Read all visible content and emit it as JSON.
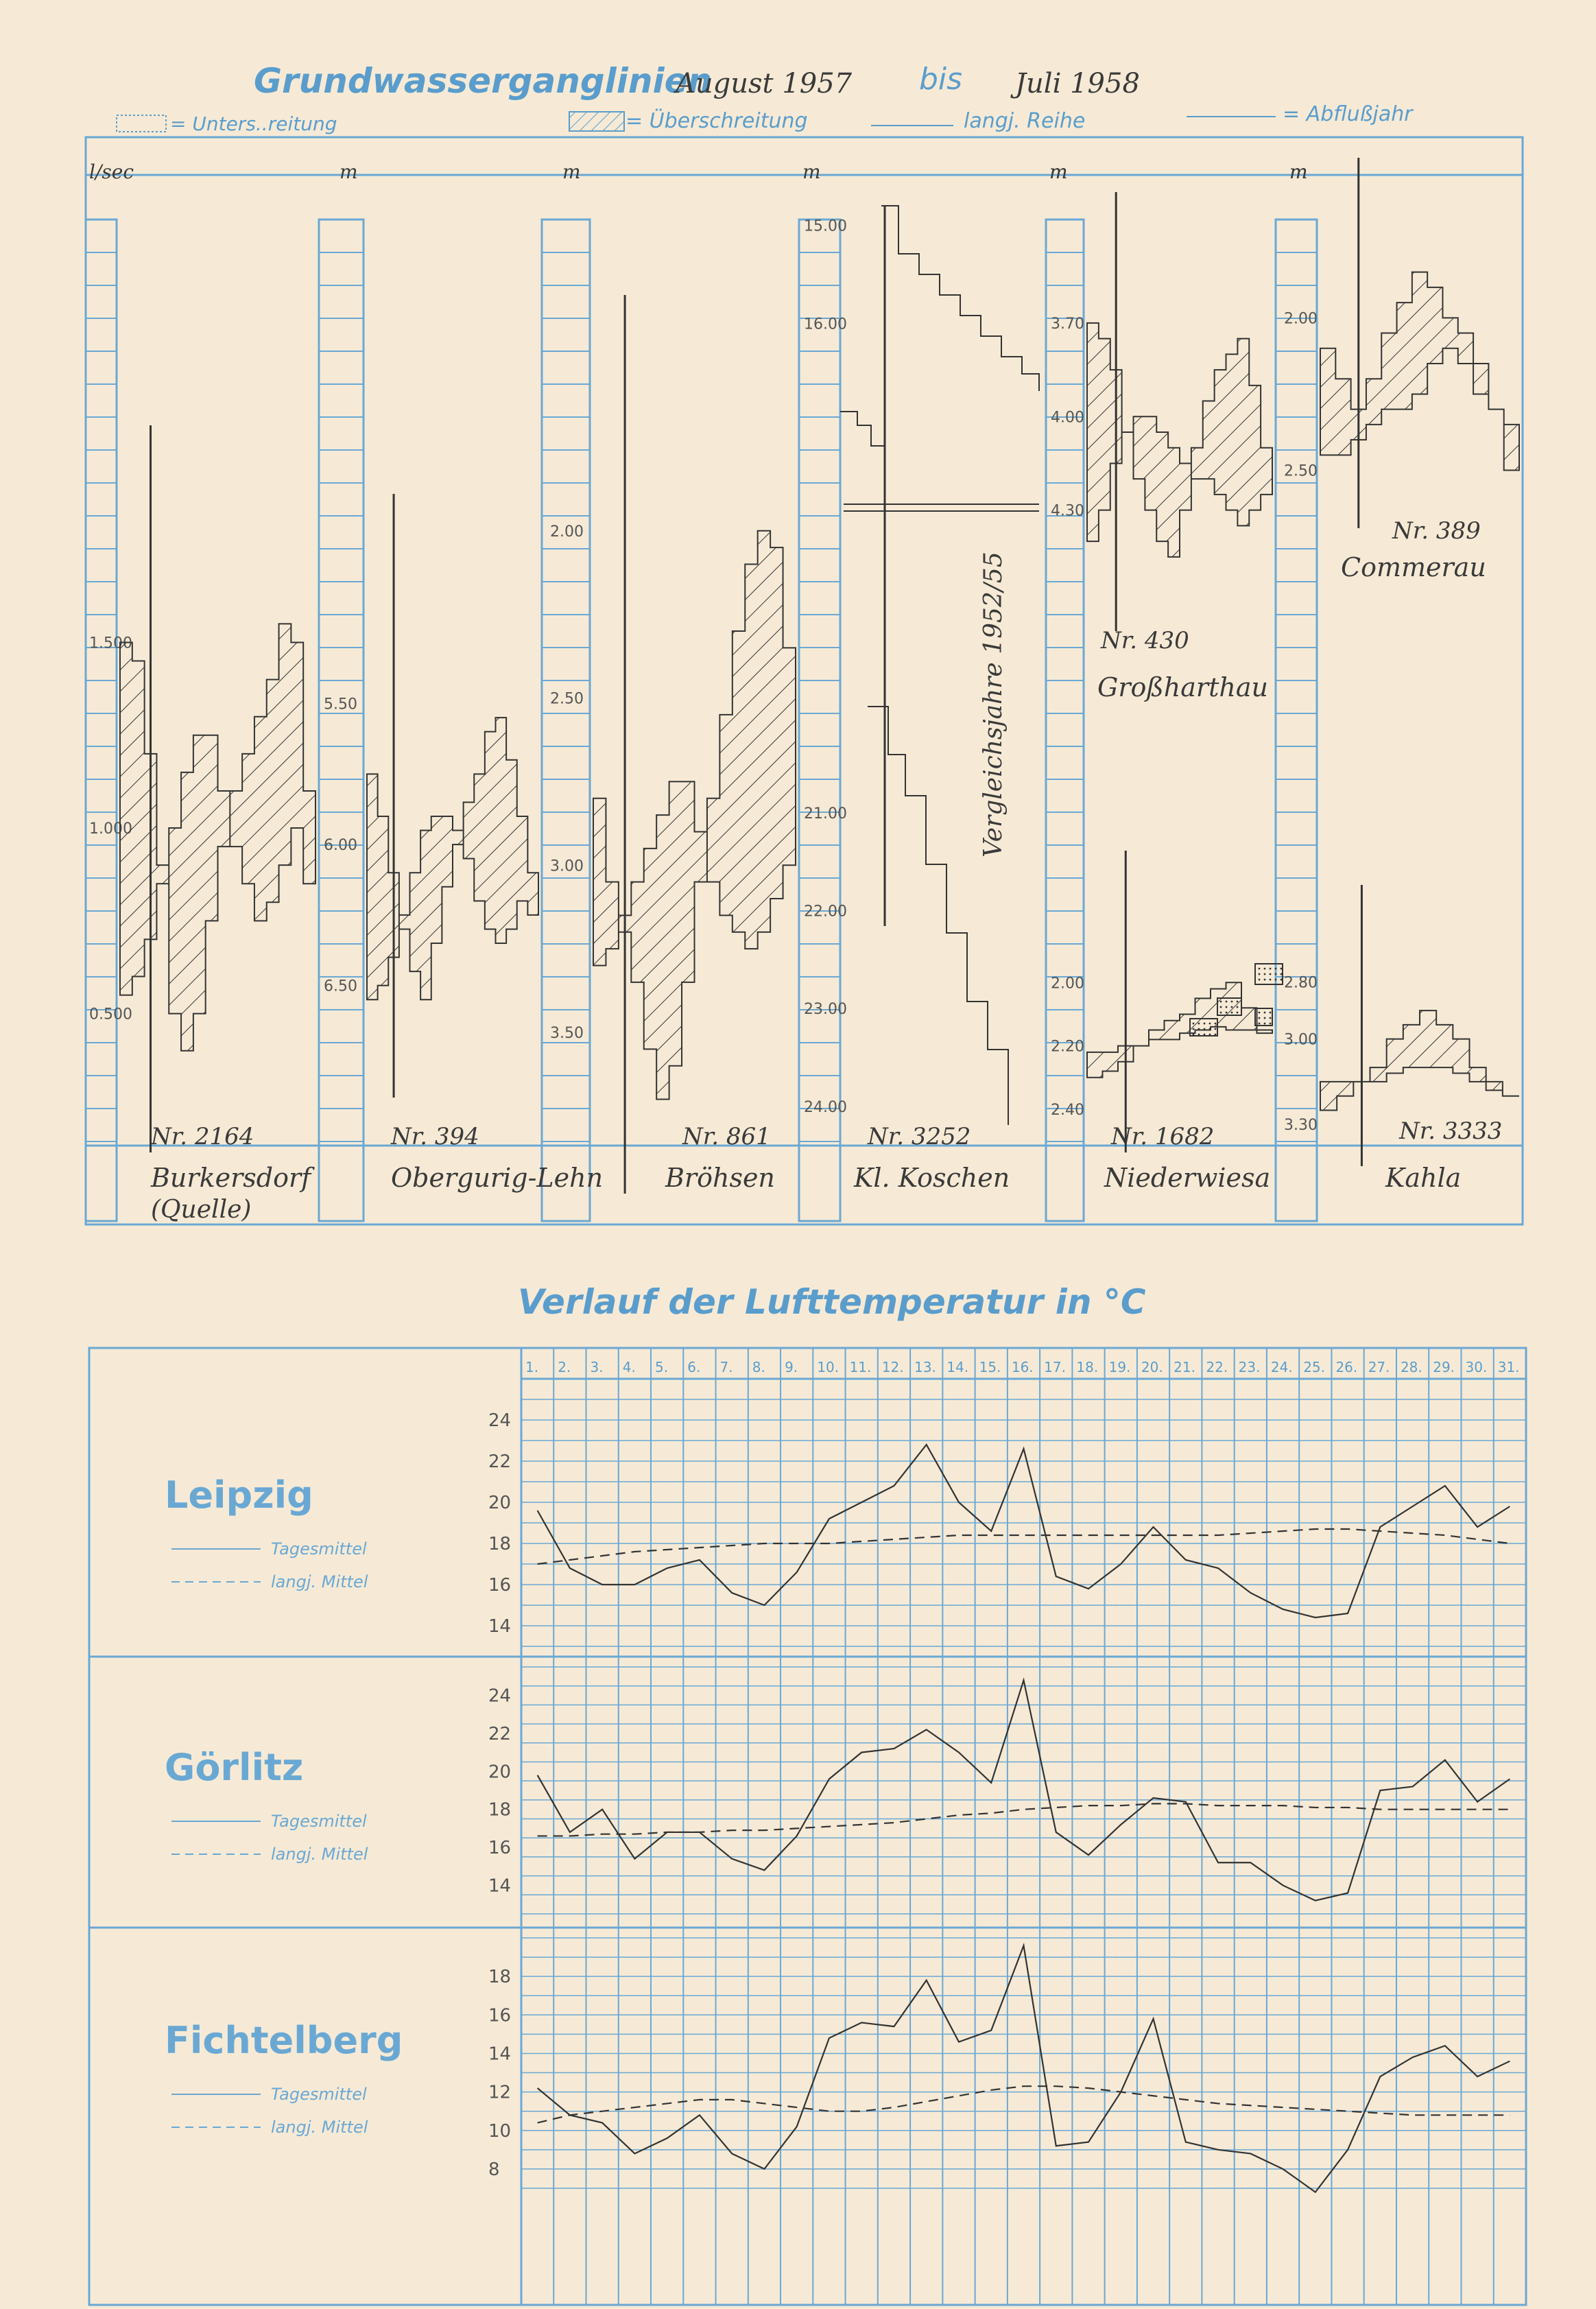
{
  "groundwater": {
    "title_prefix": "Grundwasserganglinien",
    "title_from": "August 1957",
    "title_mid": "bis",
    "title_to": "Juli 1958",
    "legend": {
      "under": "= Unters..reitung",
      "over": "= Überschreitung",
      "long_term": "langj. Reihe",
      "runoff_year": "= Abflußjahr"
    },
    "comparison_note": "Vergleichsjahre 1952/55"
  },
  "temperature": {
    "title": "Verlauf der Lufttemperatur in °C",
    "days": [
      "1.",
      "2.",
      "3.",
      "4.",
      "5.",
      "6.",
      "7.",
      "8.",
      "9.",
      "10.",
      "11.",
      "12.",
      "13.",
      "14.",
      "15.",
      "16.",
      "17.",
      "18.",
      "19.",
      "20.",
      "21.",
      "22.",
      "23.",
      "24.",
      "25.",
      "26.",
      "27.",
      "28.",
      "29.",
      "30.",
      "31."
    ],
    "legend_daily": "Tagesmittel",
    "legend_long_term": "langj. Mittel"
  },
  "chart_data": [
    {
      "type": "area",
      "title": "Grundwasserganglinien August 1957 bis Juli 1958",
      "panels": [
        {
          "nr": "Nr. 2164",
          "name": "Burkersdorf (Quelle)",
          "unit": "l/sec",
          "ticks": [
            "1.500",
            "1.000",
            "0.500"
          ],
          "tick_values": [
            1.5,
            1.0,
            0.5
          ],
          "ylim": [
            1.9,
            0.2
          ],
          "values": [
            1.5,
            1.45,
            1.2,
            0.9,
            0.5,
            0.4,
            0.5,
            0.75,
            0.95,
            1.1,
            1.2,
            1.3,
            1.4,
            1.55,
            1.5,
            1.1
          ],
          "long_term": [
            0.55,
            0.6,
            0.7,
            0.85,
            1.0,
            1.15,
            1.25,
            1.25,
            1.1,
            0.95,
            0.85,
            0.75,
            0.8,
            0.9,
            1.0,
            0.85
          ]
        },
        {
          "nr": "Nr. 394",
          "name": "Obergurig-Lehn",
          "unit": "m",
          "ticks": [
            "5.50",
            "6.00",
            "6.50"
          ],
          "tick_values": [
            5.5,
            6.0,
            6.5
          ],
          "ylim": [
            5.0,
            6.8
          ],
          "values": [
            5.75,
            5.9,
            6.1,
            6.3,
            6.45,
            6.55,
            6.35,
            6.15,
            6.0,
            5.85,
            5.75,
            5.6,
            5.55,
            5.7,
            5.9,
            6.1
          ],
          "long_term": [
            6.55,
            6.5,
            6.4,
            6.25,
            6.1,
            5.95,
            5.9,
            5.9,
            5.95,
            6.05,
            6.2,
            6.3,
            6.35,
            6.3,
            6.2,
            6.25
          ]
        },
        {
          "nr": "Nr. 861",
          "name": "Bröhsen",
          "unit": "m",
          "ticks": [
            "2.00",
            "2.50",
            "3.00",
            "3.50"
          ],
          "tick_values": [
            2.0,
            2.5,
            3.0,
            3.5
          ],
          "ylim": [
            1.5,
            3.9
          ],
          "values": [
            2.8,
            3.05,
            3.2,
            3.35,
            3.55,
            3.7,
            3.6,
            3.35,
            3.05,
            2.8,
            2.55,
            2.3,
            2.1,
            2.0,
            2.05,
            2.35
          ],
          "long_term": [
            3.3,
            3.25,
            3.15,
            3.05,
            2.95,
            2.85,
            2.75,
            2.75,
            2.9,
            3.05,
            3.15,
            3.2,
            3.25,
            3.2,
            3.1,
            3.0
          ]
        },
        {
          "nr": "Nr. 3252",
          "name": "Kl. Koschen",
          "unit": "m",
          "ticks": [
            "15.00",
            "16.00",
            "21.00",
            "22.00",
            "23.00",
            "24.00"
          ],
          "tick_values": [
            15.0,
            16.0,
            21.0,
            22.0,
            23.0,
            24.0
          ],
          "ylim": [
            14.8,
            24.4
          ],
          "values": [],
          "long_term": []
        },
        {
          "nr": "Nr. 430",
          "name": "Großharthau",
          "unit": "m",
          "ticks": [
            "3.70",
            "4.00",
            "4.30"
          ],
          "tick_values": [
            3.7,
            4.0,
            4.3
          ],
          "ylim": [
            3.5,
            4.6
          ],
          "values": [
            3.7,
            3.75,
            3.85,
            4.05,
            4.2,
            4.3,
            4.4,
            4.45,
            4.3,
            4.1,
            3.95,
            3.85,
            3.8,
            3.75,
            3.9,
            4.1
          ],
          "long_term": [
            4.4,
            4.3,
            4.15,
            4.05,
            4.0,
            4.0,
            4.05,
            4.1,
            4.15,
            4.2,
            4.2,
            4.25,
            4.3,
            4.35,
            4.3,
            4.25
          ]
        },
        {
          "nr": "Nr. 389",
          "name": "Commerau",
          "unit": "m",
          "ticks": [
            "2.00",
            "2.50"
          ],
          "tick_values": [
            2.0,
            2.5
          ],
          "ylim": [
            1.7,
            2.6
          ],
          "values": [
            2.1,
            2.2,
            2.3,
            2.2,
            2.05,
            1.95,
            1.85,
            1.9,
            2.0,
            2.05,
            2.15,
            2.3,
            2.5
          ],
          "long_term": [
            2.45,
            2.45,
            2.4,
            2.35,
            2.3,
            2.3,
            2.25,
            2.15,
            2.1,
            2.15,
            2.25,
            2.3,
            2.35
          ]
        },
        {
          "nr": "Nr. 1682",
          "name": "Niederwiesa",
          "unit": "m",
          "ticks": [
            "2.00",
            "2.20",
            "2.40"
          ],
          "tick_values": [
            2.0,
            2.2,
            2.4
          ],
          "ylim": [
            1.8,
            2.45
          ],
          "values": [
            2.3,
            2.28,
            2.25,
            2.2,
            2.15,
            2.12,
            2.1,
            2.05,
            2.02,
            2.0,
            2.08,
            2.15
          ],
          "long_term": [
            2.22,
            2.22,
            2.2,
            2.2,
            2.18,
            2.18,
            2.16,
            2.15,
            2.14,
            2.15,
            2.15,
            2.16
          ]
        },
        {
          "nr": "Nr. 3333",
          "name": "Kahla",
          "unit": "m",
          "ticks": [
            "2.80",
            "3.00",
            "3.30"
          ],
          "tick_values": [
            2.8,
            3.0,
            3.3
          ],
          "ylim": [
            2.7,
            3.35
          ],
          "values": [
            3.25,
            3.2,
            3.15,
            3.1,
            3.0,
            2.95,
            2.9,
            2.95,
            3.0,
            3.1,
            3.15,
            3.2
          ],
          "long_term": [
            3.15,
            3.15,
            3.15,
            3.15,
            3.12,
            3.1,
            3.1,
            3.1,
            3.12,
            3.15,
            3.18,
            3.2
          ]
        }
      ]
    },
    {
      "type": "line",
      "title": "Verlauf der Lufttemperatur in °C",
      "x": [
        1,
        2,
        3,
        4,
        5,
        6,
        7,
        8,
        9,
        10,
        11,
        12,
        13,
        14,
        15,
        16,
        17,
        18,
        19,
        20,
        21,
        22,
        23,
        24,
        25,
        26,
        27,
        28,
        29,
        30,
        31
      ],
      "panels": [
        {
          "station": "Leipzig",
          "ticks": [
            24,
            22,
            20,
            18,
            16,
            14
          ],
          "ylim": [
            13,
            25
          ],
          "series": [
            {
              "name": "Tagesmittel",
              "values": [
                19.6,
                16.8,
                16.0,
                16.0,
                16.8,
                17.2,
                15.6,
                15.0,
                16.6,
                19.2,
                20.0,
                20.8,
                22.8,
                20.0,
                18.6,
                22.6,
                16.4,
                15.8,
                17.0,
                18.8,
                17.2,
                16.8,
                15.6,
                14.8,
                14.4,
                14.6,
                18.8,
                19.8,
                20.8,
                18.8,
                19.8
              ]
            },
            {
              "name": "langj. Mittel",
              "values": [
                17.0,
                17.2,
                17.4,
                17.6,
                17.7,
                17.8,
                17.9,
                18.0,
                18.0,
                18.0,
                18.1,
                18.2,
                18.3,
                18.4,
                18.4,
                18.4,
                18.4,
                18.4,
                18.4,
                18.4,
                18.4,
                18.4,
                18.5,
                18.6,
                18.7,
                18.7,
                18.6,
                18.5,
                18.4,
                18.2,
                18.0
              ]
            }
          ]
        },
        {
          "station": "Görlitz",
          "ticks": [
            24,
            22,
            20,
            18,
            16,
            14
          ],
          "ylim": [
            12.5,
            25.5
          ],
          "series": [
            {
              "name": "Tagesmittel",
              "values": [
                19.8,
                16.8,
                18.0,
                15.4,
                16.8,
                16.8,
                15.4,
                14.8,
                16.6,
                19.6,
                21.0,
                21.2,
                22.2,
                21.0,
                19.4,
                24.8,
                16.8,
                15.6,
                17.2,
                18.6,
                18.4,
                15.2,
                15.2,
                14.0,
                13.2,
                13.6,
                19.0,
                19.2,
                20.6,
                18.4,
                19.6
              ]
            },
            {
              "name": "langj. Mittel",
              "values": [
                16.6,
                16.6,
                16.7,
                16.7,
                16.8,
                16.8,
                16.9,
                16.9,
                17.0,
                17.1,
                17.2,
                17.3,
                17.5,
                17.7,
                17.8,
                18.0,
                18.1,
                18.2,
                18.2,
                18.3,
                18.3,
                18.2,
                18.2,
                18.2,
                18.1,
                18.1,
                18.0,
                18.0,
                18.0,
                18.0,
                18.0
              ]
            }
          ]
        },
        {
          "station": "Fichtelberg",
          "ticks": [
            18,
            16,
            14,
            12,
            10,
            8
          ],
          "ylim": [
            7,
            20
          ],
          "series": [
            {
              "name": "Tagesmittel",
              "values": [
                12.2,
                10.8,
                10.4,
                8.8,
                9.6,
                10.8,
                8.8,
                8.0,
                10.2,
                14.8,
                15.6,
                15.4,
                17.8,
                14.6,
                15.2,
                19.6,
                9.2,
                9.4,
                12.0,
                15.8,
                9.4,
                9.0,
                8.8,
                8.0,
                6.8,
                9.0,
                12.8,
                13.8,
                14.4,
                12.8,
                13.6
              ]
            },
            {
              "name": "langj. Mittel",
              "values": [
                10.4,
                10.8,
                11.0,
                11.2,
                11.4,
                11.6,
                11.6,
                11.4,
                11.2,
                11.0,
                11.0,
                11.2,
                11.5,
                11.8,
                12.1,
                12.3,
                12.3,
                12.2,
                12.0,
                11.8,
                11.6,
                11.4,
                11.3,
                11.2,
                11.1,
                11.0,
                10.9,
                10.8,
                10.8,
                10.8,
                10.8
              ]
            }
          ]
        }
      ]
    }
  ]
}
